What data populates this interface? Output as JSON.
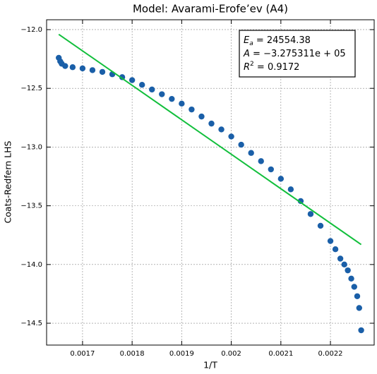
{
  "chart_data": {
    "type": "scatter",
    "title": "Model: Avarami-Erofe’ev (A4)",
    "xlabel": "1/T",
    "ylabel": "Coats-Redfern LHS",
    "xlim": [
      0.0016275,
      0.0022882
    ],
    "ylim": [
      -14.686,
      -11.916
    ],
    "xticks": [
      0.0017,
      0.0018,
      0.0019,
      0.002,
      0.0021,
      0.0022
    ],
    "yticks": [
      {
        "value": -12,
        "label": "−12.0"
      },
      {
        "value": -12.5,
        "label": "−12.5"
      },
      {
        "value": -13,
        "label": "−13.0"
      },
      {
        "value": -13.5,
        "label": "−13.5"
      },
      {
        "value": -14,
        "label": "−14.0"
      },
      {
        "value": -14.5,
        "label": "−14.5"
      }
    ],
    "grid": true,
    "series": [
      {
        "color": "#1a5fa8",
        "style": "points",
        "x": [
          0.001652,
          0.001655,
          0.001658,
          0.001665,
          0.00168,
          0.0017,
          0.00172,
          0.00174,
          0.00176,
          0.00178,
          0.0018,
          0.00182,
          0.00184,
          0.00186,
          0.00188,
          0.0019,
          0.00192,
          0.00194,
          0.00196,
          0.00198,
          0.002,
          0.00202,
          0.00204,
          0.00206,
          0.00208,
          0.0021,
          0.00212,
          0.00214,
          0.00216,
          0.00218,
          0.0022,
          0.00221,
          0.00222,
          0.002228,
          0.002235,
          0.002242,
          0.002248,
          0.002254,
          0.002258,
          0.002262
        ],
        "values": [
          -12.24,
          -12.27,
          -12.29,
          -12.31,
          -12.32,
          -12.33,
          -12.345,
          -12.36,
          -12.38,
          -12.405,
          -12.43,
          -12.47,
          -12.51,
          -12.55,
          -12.59,
          -12.63,
          -12.68,
          -12.74,
          -12.8,
          -12.85,
          -12.91,
          -12.98,
          -13.05,
          -13.12,
          -13.19,
          -13.27,
          -13.36,
          -13.46,
          -13.57,
          -13.67,
          -13.8,
          -13.87,
          -13.95,
          -14.0,
          -14.05,
          -14.12,
          -14.19,
          -14.27,
          -14.37,
          -14.56
        ]
      },
      {
        "color": "#12bf3c",
        "style": "line",
        "x": [
          0.001652,
          0.002262
        ],
        "values": [
          -12.04,
          -13.83
        ]
      }
    ],
    "annotation": [
      {
        "symbol": "E",
        "subscript": "a",
        "text": " = 24554.38"
      },
      {
        "symbol": "A",
        "text": " = −3.275311e + 05"
      },
      {
        "symbol": "R",
        "superscript": "2",
        "text": " = 0.9172"
      }
    ]
  }
}
